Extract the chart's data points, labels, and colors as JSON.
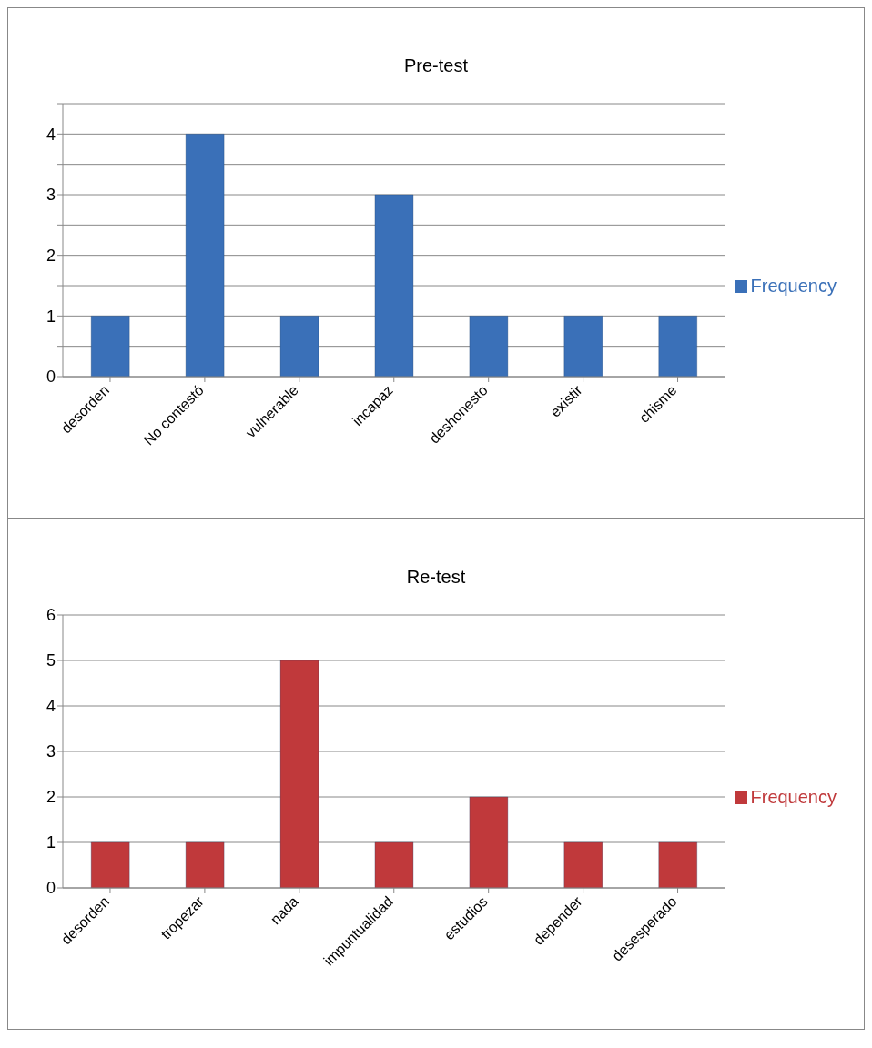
{
  "chart_data": [
    {
      "type": "bar",
      "title": "Pre-test",
      "categories": [
        "desorden",
        "No contestó",
        "vulnerable",
        "incapaz",
        "deshonesto",
        "existir",
        "chisme"
      ],
      "series": [
        {
          "name": "Frequency",
          "color": "#3a70b8",
          "values": [
            1,
            4,
            1,
            3,
            1,
            1,
            1
          ]
        }
      ],
      "ylim": [
        0,
        4.5
      ],
      "yticks": [
        0,
        {
          "value": 0.5,
          "label": null
        },
        1,
        {
          "value": 1.5,
          "label": null
        },
        2,
        {
          "value": 2.5,
          "label": null
        },
        3,
        {
          "value": 3.5,
          "label": null
        },
        4,
        {
          "value": 4.5,
          "label": null
        }
      ],
      "grid": "y",
      "legend": "right"
    },
    {
      "type": "bar",
      "title": "Re-test",
      "categories": [
        "desorden",
        "tropezar",
        "nada",
        "impuntualidad",
        "estudios",
        "depender",
        "desesperado"
      ],
      "series": [
        {
          "name": "Frequency",
          "color": "#c0393b",
          "values": [
            1,
            1,
            5,
            1,
            2,
            1,
            1
          ]
        }
      ],
      "ylim": [
        0,
        6
      ],
      "yticks": [
        0,
        1,
        2,
        3,
        4,
        5,
        6
      ],
      "grid": "y",
      "legend": "right"
    }
  ]
}
